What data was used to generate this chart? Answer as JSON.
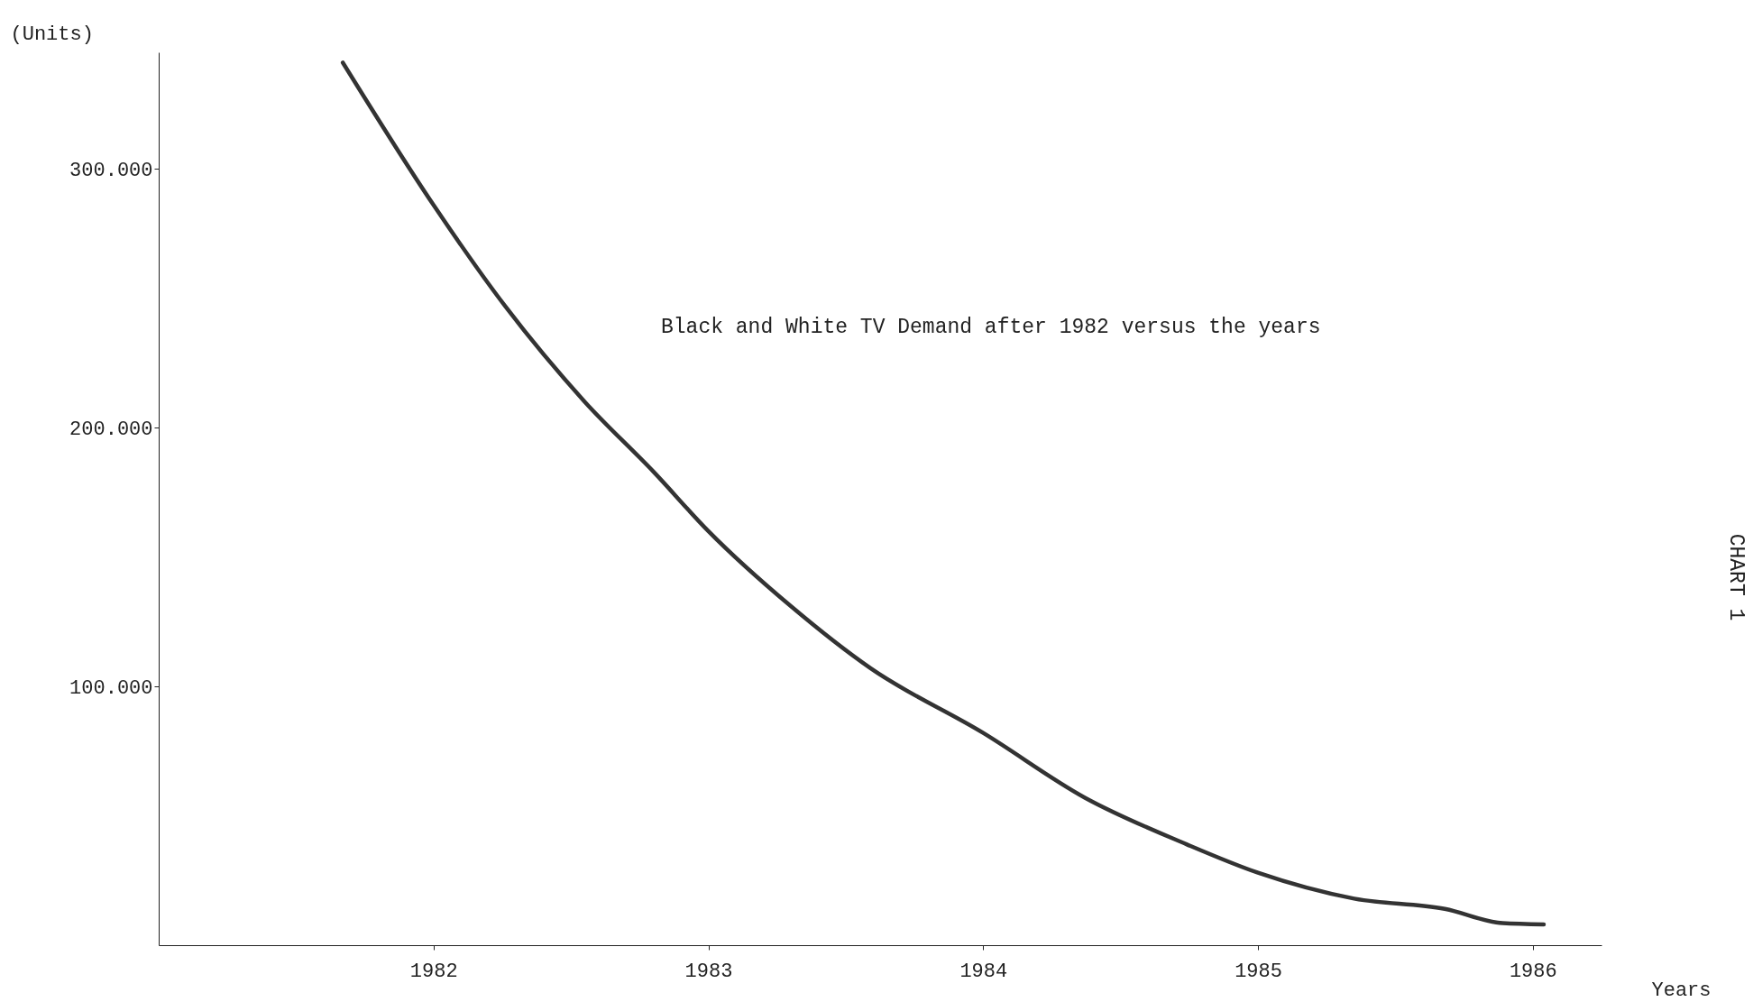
{
  "chart_data": {
    "type": "line",
    "ylabel": "(Units)",
    "xlabel": "Years",
    "annotations": [
      "Black and White TV Demand after 1982 versus the years",
      "CHART 1"
    ],
    "x": [
      1981.67,
      1982.0,
      1982.26,
      1982.55,
      1982.8,
      1983.0,
      1983.3,
      1983.59,
      1984.0,
      1984.37,
      1984.74,
      1985.0,
      1985.35,
      1985.68,
      1985.89,
      1986.04
    ],
    "series": [
      {
        "color": "#333333",
        "values": [
          341000,
          286000,
          247000,
          210000,
          183000,
          160000,
          131000,
          107000,
          82000,
          57000,
          39000,
          28000,
          18000,
          14000,
          8500,
          8000
        ]
      }
    ],
    "xlim": [
      1981.0,
      1986.25
    ],
    "ylim": [
      0,
      345000
    ],
    "xticks": [
      1982,
      1983,
      1984,
      1985,
      1986
    ],
    "yticks": [
      {
        "value": 100000,
        "label": "100.000"
      },
      {
        "value": 200000,
        "label": "200.000"
      },
      {
        "value": 300000,
        "label": "300.000"
      }
    ],
    "grid": false,
    "marker": "none",
    "line_style": "solid"
  }
}
